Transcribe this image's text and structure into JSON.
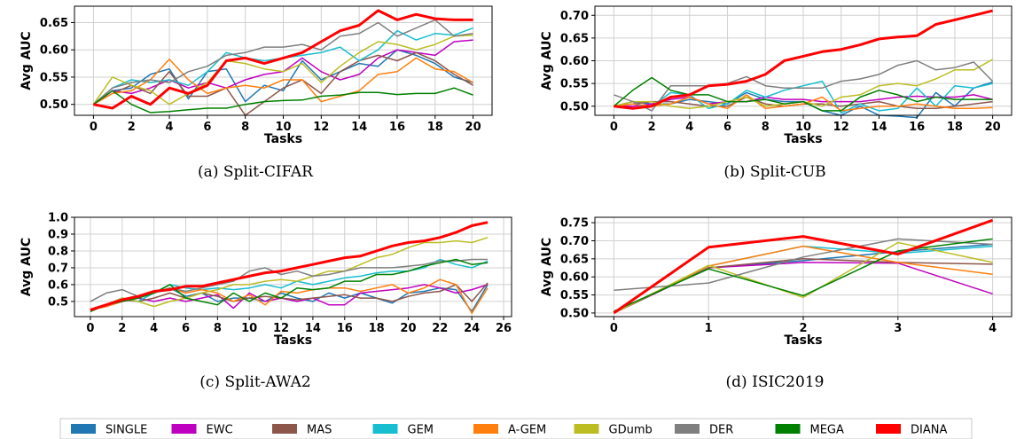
{
  "legend": [
    {
      "name": "SINGLE",
      "color": "#1f77b4"
    },
    {
      "name": "EWC",
      "color": "#c000c0"
    },
    {
      "name": "MAS",
      "color": "#8c564b"
    },
    {
      "name": "GEM",
      "color": "#17becf"
    },
    {
      "name": "A-GEM",
      "color": "#ff7f0e"
    },
    {
      "name": "GDumb",
      "color": "#bcbd22"
    },
    {
      "name": "DER",
      "color": "#7f7f7f"
    },
    {
      "name": "MEGA",
      "color": "#008000"
    },
    {
      "name": "DIANA",
      "color": "#ff0000"
    }
  ],
  "chart_data": [
    {
      "type": "line",
      "caption": "(a) Split-CIFAR",
      "xlabel": "Tasks",
      "ylabel": "Avg AUC",
      "xlim": [
        -1,
        21
      ],
      "ylim": [
        0.48,
        0.68
      ],
      "xticks": [
        0,
        2,
        4,
        6,
        8,
        10,
        12,
        14,
        16,
        18,
        20
      ],
      "yticks": [
        0.5,
        0.55,
        0.6,
        0.65
      ],
      "ytick_labels": [
        "0.50",
        "0.55",
        "0.60",
        "0.65"
      ],
      "grid": true,
      "x": [
        0,
        1,
        2,
        3,
        4,
        5,
        6,
        7,
        8,
        9,
        10,
        11,
        12,
        13,
        14,
        15,
        16,
        17,
        18,
        19,
        20
      ],
      "series": [
        {
          "name": "SINGLE",
          "values": [
            0.5,
            0.525,
            0.53,
            0.555,
            0.565,
            0.51,
            0.56,
            0.565,
            0.505,
            0.535,
            0.525,
            0.58,
            0.545,
            0.56,
            0.575,
            0.57,
            0.6,
            0.59,
            0.575,
            0.55,
            0.54
          ]
        },
        {
          "name": "EWC",
          "values": [
            0.5,
            0.525,
            0.52,
            0.53,
            0.545,
            0.53,
            0.54,
            0.53,
            0.545,
            0.555,
            0.56,
            0.585,
            0.56,
            0.545,
            0.555,
            0.585,
            0.6,
            0.595,
            0.59,
            0.615,
            0.618
          ]
        },
        {
          "name": "MAS",
          "values": [
            0.5,
            0.52,
            0.535,
            0.52,
            0.56,
            0.515,
            0.515,
            0.53,
            0.48,
            0.505,
            0.53,
            0.545,
            0.52,
            0.56,
            0.58,
            0.59,
            0.58,
            0.595,
            0.58,
            0.555,
            0.535
          ]
        },
        {
          "name": "GEM",
          "values": [
            0.5,
            0.53,
            0.545,
            0.54,
            0.545,
            0.535,
            0.56,
            0.595,
            0.585,
            0.58,
            0.585,
            0.59,
            0.595,
            0.605,
            0.58,
            0.6,
            0.635,
            0.618,
            0.63,
            0.627,
            0.64
          ]
        },
        {
          "name": "A-GEM",
          "values": [
            0.5,
            0.52,
            0.525,
            0.545,
            0.583,
            0.545,
            0.52,
            0.53,
            0.535,
            0.53,
            0.545,
            0.545,
            0.505,
            0.515,
            0.525,
            0.555,
            0.56,
            0.585,
            0.565,
            0.56,
            0.54
          ]
        },
        {
          "name": "GDumb",
          "values": [
            0.5,
            0.55,
            0.535,
            0.525,
            0.5,
            0.52,
            0.54,
            0.58,
            0.575,
            0.565,
            0.56,
            0.575,
            0.54,
            0.57,
            0.595,
            0.615,
            0.61,
            0.6,
            0.61,
            0.625,
            0.627
          ]
        },
        {
          "name": "DER",
          "values": [
            0.5,
            0.53,
            0.54,
            0.545,
            0.54,
            0.56,
            0.57,
            0.59,
            0.595,
            0.605,
            0.605,
            0.61,
            0.6,
            0.625,
            0.63,
            0.65,
            0.625,
            0.64,
            0.655,
            0.625,
            0.63
          ]
        },
        {
          "name": "MEGA",
          "values": [
            0.5,
            0.525,
            0.5,
            0.485,
            0.487,
            0.49,
            0.493,
            0.493,
            0.5,
            0.505,
            0.507,
            0.508,
            0.515,
            0.517,
            0.522,
            0.522,
            0.518,
            0.52,
            0.52,
            0.53,
            0.517
          ]
        },
        {
          "name": "DIANA",
          "values": [
            0.5,
            0.493,
            0.515,
            0.5,
            0.53,
            0.52,
            0.535,
            0.58,
            0.585,
            0.575,
            0.585,
            0.595,
            0.615,
            0.635,
            0.645,
            0.672,
            0.655,
            0.665,
            0.657,
            0.655,
            0.655
          ]
        }
      ]
    },
    {
      "type": "line",
      "caption": "(b) Split-CUB",
      "xlabel": "Tasks",
      "ylabel": "Avg AUC",
      "xlim": [
        -1,
        21
      ],
      "ylim": [
        0.48,
        0.72
      ],
      "xticks": [
        0,
        2,
        4,
        6,
        8,
        10,
        12,
        14,
        16,
        18,
        20
      ],
      "yticks": [
        0.5,
        0.55,
        0.6,
        0.65,
        0.7
      ],
      "ytick_labels": [
        "0.50",
        "0.55",
        "0.60",
        "0.65",
        "0.70"
      ],
      "grid": true,
      "x": [
        0,
        1,
        2,
        3,
        4,
        5,
        6,
        7,
        8,
        9,
        10,
        11,
        12,
        13,
        14,
        15,
        16,
        17,
        18,
        19,
        20
      ],
      "series": [
        {
          "name": "SINGLE",
          "values": [
            0.5,
            0.51,
            0.505,
            0.505,
            0.515,
            0.51,
            0.505,
            0.53,
            0.515,
            0.51,
            0.51,
            0.49,
            0.48,
            0.5,
            0.48,
            0.478,
            0.475,
            0.53,
            0.5,
            0.54,
            0.553
          ]
        },
        {
          "name": "EWC",
          "values": [
            0.5,
            0.5,
            0.505,
            0.515,
            0.52,
            0.505,
            0.51,
            0.51,
            0.52,
            0.515,
            0.515,
            0.51,
            0.51,
            0.51,
            0.515,
            0.52,
            0.522,
            0.52,
            0.52,
            0.525,
            0.515
          ]
        },
        {
          "name": "MAS",
          "values": [
            0.5,
            0.505,
            0.51,
            0.51,
            0.505,
            0.5,
            0.5,
            0.52,
            0.505,
            0.5,
            0.505,
            0.505,
            0.5,
            0.505,
            0.51,
            0.5,
            0.495,
            0.495,
            0.5,
            0.505,
            0.51
          ]
        },
        {
          "name": "GEM",
          "values": [
            0.5,
            0.495,
            0.5,
            0.53,
            0.525,
            0.495,
            0.505,
            0.535,
            0.52,
            0.535,
            0.545,
            0.555,
            0.485,
            0.505,
            0.49,
            0.495,
            0.54,
            0.5,
            0.545,
            0.54,
            0.55
          ]
        },
        {
          "name": "A-GEM",
          "values": [
            0.5,
            0.505,
            0.5,
            0.505,
            0.52,
            0.505,
            0.495,
            0.525,
            0.495,
            0.5,
            0.505,
            0.52,
            0.49,
            0.495,
            0.5,
            0.5,
            0.505,
            0.5,
            0.495,
            0.495,
            0.497
          ]
        },
        {
          "name": "GDumb",
          "values": [
            0.5,
            0.51,
            0.51,
            0.5,
            0.495,
            0.5,
            0.51,
            0.52,
            0.5,
            0.505,
            0.51,
            0.5,
            0.52,
            0.525,
            0.545,
            0.55,
            0.545,
            0.56,
            0.58,
            0.58,
            0.603
          ]
        },
        {
          "name": "DER",
          "values": [
            0.525,
            0.51,
            0.49,
            0.545,
            0.545,
            0.545,
            0.55,
            0.565,
            0.545,
            0.54,
            0.54,
            0.54,
            0.555,
            0.56,
            0.57,
            0.59,
            0.6,
            0.58,
            0.585,
            0.597,
            0.555
          ]
        },
        {
          "name": "MEGA",
          "values": [
            0.5,
            0.535,
            0.563,
            0.535,
            0.525,
            0.525,
            0.51,
            0.51,
            0.515,
            0.505,
            0.51,
            0.49,
            0.49,
            0.52,
            0.535,
            0.525,
            0.51,
            0.52,
            0.515,
            0.515,
            0.515
          ]
        },
        {
          "name": "DIANA",
          "values": [
            0.5,
            0.495,
            0.5,
            0.52,
            0.525,
            0.545,
            0.548,
            0.555,
            0.57,
            0.6,
            0.61,
            0.62,
            0.625,
            0.635,
            0.648,
            0.652,
            0.655,
            0.68,
            0.69,
            0.7,
            0.71
          ]
        }
      ]
    },
    {
      "type": "line",
      "caption": "(c) Split-AWA2",
      "xlabel": "Tasks",
      "ylabel": "Avg AUC",
      "xlim": [
        -1,
        26.5
      ],
      "ylim": [
        0.41,
        1.0
      ],
      "xticks": [
        0,
        2,
        4,
        6,
        8,
        10,
        12,
        14,
        16,
        18,
        20,
        22,
        24,
        26
      ],
      "yticks": [
        0.5,
        0.6,
        0.7,
        0.8,
        0.9,
        1.0
      ],
      "ytick_labels": [
        "0.5",
        "0.6",
        "0.7",
        "0.8",
        "0.9",
        "1.0"
      ],
      "grid": true,
      "x": [
        0,
        1,
        2,
        3,
        4,
        5,
        6,
        7,
        8,
        9,
        10,
        11,
        12,
        13,
        14,
        15,
        16,
        17,
        18,
        19,
        20,
        21,
        22,
        23,
        24,
        25
      ],
      "series": [
        {
          "name": "SINGLE",
          "values": [
            0.45,
            0.48,
            0.52,
            0.5,
            0.55,
            0.58,
            0.53,
            0.55,
            0.5,
            0.52,
            0.52,
            0.5,
            0.55,
            0.52,
            0.5,
            0.55,
            0.52,
            0.55,
            0.52,
            0.49,
            0.55,
            0.56,
            0.58,
            0.57,
            0.44,
            0.6
          ]
        },
        {
          "name": "EWC",
          "values": [
            0.45,
            0.47,
            0.5,
            0.52,
            0.5,
            0.52,
            0.5,
            0.52,
            0.54,
            0.46,
            0.55,
            0.5,
            0.52,
            0.5,
            0.52,
            0.48,
            0.48,
            0.55,
            0.56,
            0.57,
            0.58,
            0.6,
            0.58,
            0.55,
            0.57,
            0.6
          ]
        },
        {
          "name": "MAS",
          "values": [
            0.45,
            0.48,
            0.51,
            0.5,
            0.52,
            0.55,
            0.52,
            0.55,
            0.53,
            0.5,
            0.52,
            0.53,
            0.52,
            0.51,
            0.52,
            0.53,
            0.54,
            0.52,
            0.52,
            0.5,
            0.53,
            0.55,
            0.56,
            0.6,
            0.5,
            0.61
          ]
        },
        {
          "name": "GEM",
          "values": [
            0.45,
            0.48,
            0.52,
            0.5,
            0.55,
            0.6,
            0.58,
            0.57,
            0.58,
            0.57,
            0.58,
            0.6,
            0.58,
            0.62,
            0.6,
            0.62,
            0.64,
            0.65,
            0.67,
            0.68,
            0.68,
            0.7,
            0.75,
            0.72,
            0.7,
            0.74
          ]
        },
        {
          "name": "A-GEM",
          "values": [
            0.45,
            0.47,
            0.5,
            0.52,
            0.55,
            0.58,
            0.55,
            0.57,
            0.55,
            0.5,
            0.54,
            0.48,
            0.56,
            0.55,
            0.57,
            0.58,
            0.58,
            0.56,
            0.58,
            0.6,
            0.55,
            0.58,
            0.63,
            0.6,
            0.43,
            0.58
          ]
        },
        {
          "name": "GDumb",
          "values": [
            0.45,
            0.48,
            0.52,
            0.5,
            0.47,
            0.5,
            0.52,
            0.55,
            0.57,
            0.6,
            0.6,
            0.62,
            0.63,
            0.62,
            0.65,
            0.68,
            0.68,
            0.72,
            0.76,
            0.78,
            0.82,
            0.85,
            0.85,
            0.86,
            0.85,
            0.88
          ]
        },
        {
          "name": "DER",
          "values": [
            0.5,
            0.55,
            0.57,
            0.53,
            0.55,
            0.58,
            0.56,
            0.58,
            0.6,
            0.62,
            0.68,
            0.7,
            0.66,
            0.68,
            0.65,
            0.66,
            0.68,
            0.7,
            0.7,
            0.7,
            0.71,
            0.72,
            0.74,
            0.74,
            0.75,
            0.75
          ]
        },
        {
          "name": "MEGA",
          "values": [
            0.44,
            0.48,
            0.5,
            0.52,
            0.55,
            0.6,
            0.52,
            0.5,
            0.48,
            0.55,
            0.5,
            0.55,
            0.52,
            0.58,
            0.57,
            0.58,
            0.62,
            0.62,
            0.66,
            0.66,
            0.68,
            0.71,
            0.73,
            0.75,
            0.72,
            0.73
          ]
        },
        {
          "name": "DIANA",
          "values": [
            0.45,
            0.48,
            0.51,
            0.53,
            0.56,
            0.57,
            0.59,
            0.59,
            0.61,
            0.63,
            0.65,
            0.67,
            0.68,
            0.7,
            0.72,
            0.74,
            0.76,
            0.77,
            0.8,
            0.83,
            0.85,
            0.86,
            0.88,
            0.91,
            0.95,
            0.97
          ]
        }
      ]
    },
    {
      "type": "line",
      "caption": "(d) ISIC2019",
      "xlabel": "Tasks",
      "ylabel": "Avg AUC",
      "xlim": [
        -0.2,
        4.2
      ],
      "ylim": [
        0.49,
        0.765
      ],
      "xticks": [
        0,
        1,
        2,
        3,
        4
      ],
      "yticks": [
        0.5,
        0.55,
        0.6,
        0.65,
        0.7,
        0.75
      ],
      "ytick_labels": [
        "0.50",
        "0.55",
        "0.60",
        "0.65",
        "0.70",
        "0.75"
      ],
      "grid": true,
      "x": [
        0,
        1,
        2,
        3,
        4
      ],
      "series": [
        {
          "name": "SINGLE",
          "values": [
            0.5,
            0.625,
            0.645,
            0.67,
            0.69
          ]
        },
        {
          "name": "EWC",
          "values": [
            0.5,
            0.625,
            0.64,
            0.638,
            0.553
          ]
        },
        {
          "name": "MAS",
          "values": [
            0.5,
            0.625,
            0.65,
            0.64,
            0.635
          ]
        },
        {
          "name": "GEM",
          "values": [
            0.5,
            0.63,
            0.685,
            0.665,
            0.685
          ]
        },
        {
          "name": "A-GEM",
          "values": [
            0.5,
            0.63,
            0.685,
            0.64,
            0.607
          ]
        },
        {
          "name": "GDumb",
          "values": [
            0.5,
            0.632,
            0.543,
            0.695,
            0.64
          ]
        },
        {
          "name": "DER",
          "values": [
            0.563,
            0.583,
            0.655,
            0.705,
            0.69
          ]
        },
        {
          "name": "MEGA",
          "values": [
            0.505,
            0.622,
            0.548,
            0.672,
            0.705
          ]
        },
        {
          "name": "DIANA",
          "values": [
            0.5,
            0.682,
            0.712,
            0.663,
            0.757
          ]
        }
      ]
    }
  ]
}
